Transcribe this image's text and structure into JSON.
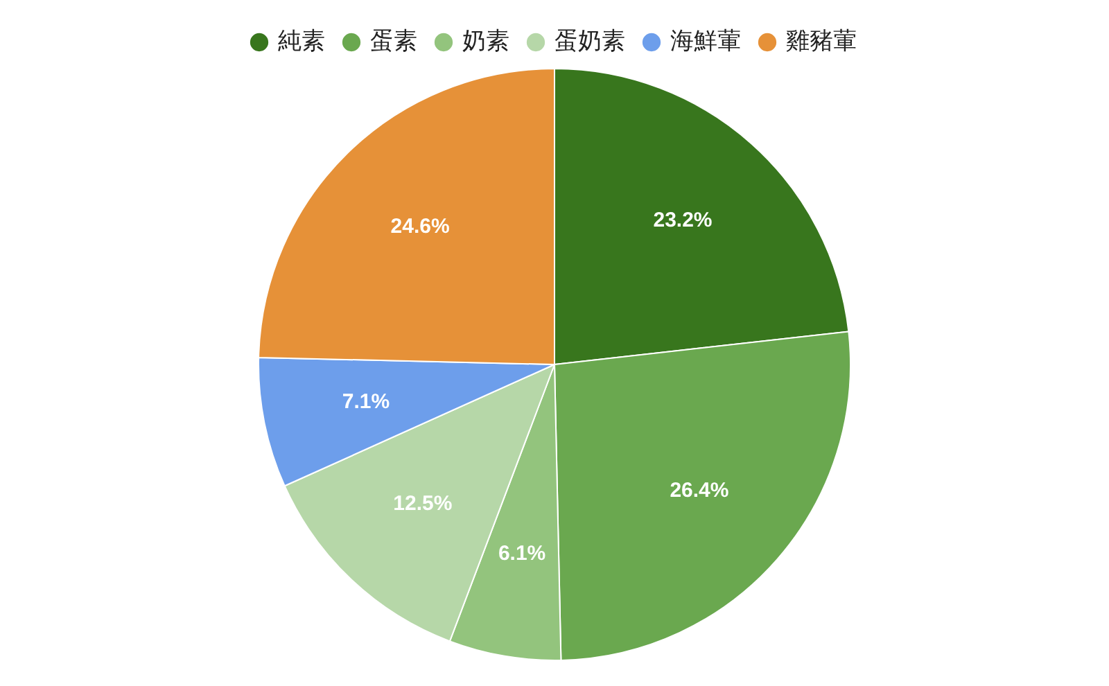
{
  "chart_data": {
    "type": "pie",
    "categories": [
      "純素",
      "蛋素",
      "奶素",
      "蛋奶素",
      "海鮮葷",
      "雞豬葷"
    ],
    "values": [
      23.2,
      26.4,
      6.1,
      12.5,
      7.1,
      24.6
    ],
    "colors": [
      "#38761d",
      "#6aa84f",
      "#93c47d",
      "#b6d7a8",
      "#6d9eeb",
      "#e69138"
    ],
    "value_labels": [
      "23.2%",
      "26.4%",
      "6.1%",
      "12.5%",
      "7.1%",
      "24.6%"
    ],
    "legend": "top"
  }
}
